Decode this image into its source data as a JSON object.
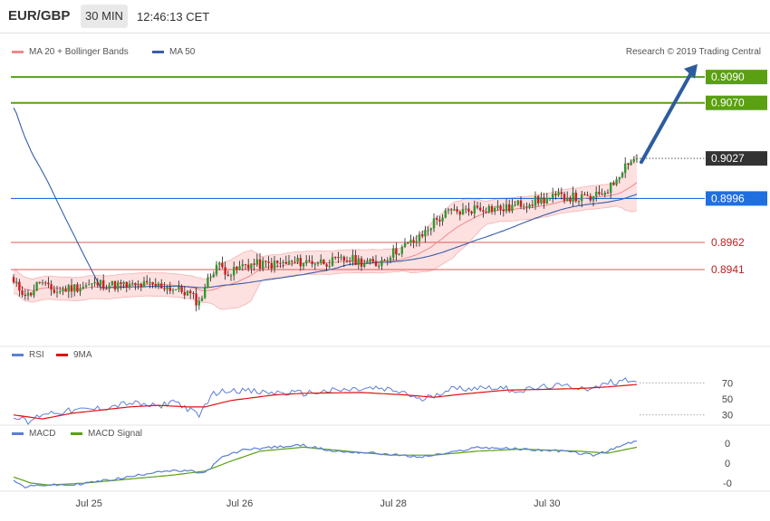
{
  "header": {
    "symbol": "EUR/GBP",
    "timeframe": "30 MIN",
    "clock": "12:46:13 CET"
  },
  "price_panel": {
    "legend": [
      {
        "label": "MA 20 + Bollinger Bands",
        "color": "#ef8a8a"
      },
      {
        "label": "MA 50",
        "color": "#3a5ea8"
      }
    ],
    "credit": "Research © 2019 Trading Central"
  },
  "rsi_panel": {
    "legend": [
      {
        "label": "RSI",
        "color": "#5b7fd6"
      },
      {
        "label": "9MA",
        "color": "#e01010"
      }
    ]
  },
  "macd_panel": {
    "legend": [
      {
        "label": "MACD",
        "color": "#5b7fd6"
      },
      {
        "label": "MACD Signal",
        "color": "#5aa012"
      }
    ]
  },
  "colors": {
    "bull": "#2e9a2e",
    "bear": "#d01c1c",
    "band": "#fde0e0",
    "target": "#5aa012",
    "current": "#333333",
    "ma50": "#1f6fe0",
    "support": "#e05a5a",
    "arrow": "#2d5c9e"
  },
  "chart_data": [
    {
      "type": "candlestick",
      "title": "EUR/GBP 30 MIN",
      "x_ticks": [
        "Jul 25",
        "Jul 26",
        "Jul 28",
        "Jul 30"
      ],
      "ylim": [
        0.8895,
        0.911
      ],
      "price_labels": [
        {
          "value": 0.909,
          "label": "0.9090",
          "kind": "target"
        },
        {
          "value": 0.907,
          "label": "0.9070",
          "kind": "target"
        },
        {
          "value": 0.9027,
          "label": "0.9027",
          "kind": "current"
        },
        {
          "value": 0.8996,
          "label": "0.8996",
          "kind": "ma50"
        },
        {
          "value": 0.8962,
          "label": "0.8962",
          "kind": "support"
        },
        {
          "value": 0.8941,
          "label": "0.8941",
          "kind": "support"
        }
      ],
      "close_keys": [
        [
          0,
          0.893
        ],
        [
          5,
          0.8921
        ],
        [
          7,
          0.8926
        ],
        [
          9,
          0.8932
        ],
        [
          12,
          0.8926
        ],
        [
          15,
          0.8924
        ],
        [
          20,
          0.8927
        ],
        [
          30,
          0.893
        ],
        [
          40,
          0.8928
        ],
        [
          45,
          0.8929
        ],
        [
          52,
          0.8928
        ],
        [
          60,
          0.8923
        ],
        [
          64,
          0.8915
        ],
        [
          66,
          0.8928
        ],
        [
          70,
          0.8945
        ],
        [
          75,
          0.8938
        ],
        [
          80,
          0.8945
        ],
        [
          90,
          0.8945
        ],
        [
          100,
          0.8947
        ],
        [
          110,
          0.8947
        ],
        [
          115,
          0.8949
        ],
        [
          118,
          0.8948
        ],
        [
          125,
          0.8945
        ],
        [
          130,
          0.8953
        ],
        [
          140,
          0.8965
        ],
        [
          145,
          0.8978
        ],
        [
          150,
          0.8985
        ],
        [
          155,
          0.8986
        ],
        [
          160,
          0.8989
        ],
        [
          170,
          0.8988
        ],
        [
          175,
          0.8992
        ],
        [
          180,
          0.8994
        ],
        [
          190,
          0.8998
        ],
        [
          195,
          0.8996
        ],
        [
          200,
          0.8996
        ],
        [
          206,
          0.9005
        ],
        [
          209,
          0.9016
        ],
        [
          212,
          0.9025
        ],
        [
          215,
          0.9027
        ]
      ],
      "forecast_arrow": {
        "from": 0.9027,
        "to": 0.91,
        "direction": "up"
      }
    },
    {
      "type": "line",
      "title": "RSI",
      "y_ticks": [
        30,
        50,
        70
      ],
      "ylim": [
        15,
        85
      ],
      "series": [
        {
          "name": "RSI",
          "keys": [
            [
              0,
              30
            ],
            [
              5,
              20
            ],
            [
              10,
              32
            ],
            [
              20,
              35
            ],
            [
              30,
              38
            ],
            [
              40,
              45
            ],
            [
              50,
              40
            ],
            [
              55,
              48
            ],
            [
              60,
              38
            ],
            [
              64,
              28
            ],
            [
              68,
              55
            ],
            [
              75,
              62
            ],
            [
              85,
              58
            ],
            [
              100,
              57
            ],
            [
              110,
              60
            ],
            [
              125,
              63
            ],
            [
              135,
              58
            ],
            [
              140,
              48
            ],
            [
              150,
              62
            ],
            [
              165,
              65
            ],
            [
              175,
              60
            ],
            [
              185,
              66
            ],
            [
              195,
              65
            ],
            [
              200,
              62
            ],
            [
              205,
              70
            ],
            [
              210,
              73
            ],
            [
              215,
              75
            ]
          ]
        },
        {
          "name": "9MA",
          "keys": [
            [
              0,
              30
            ],
            [
              10,
              25
            ],
            [
              20,
              32
            ],
            [
              30,
              36
            ],
            [
              40,
              40
            ],
            [
              50,
              42
            ],
            [
              60,
              40
            ],
            [
              66,
              40
            ],
            [
              75,
              48
            ],
            [
              90,
              55
            ],
            [
              100,
              57
            ],
            [
              120,
              58
            ],
            [
              135,
              55
            ],
            [
              145,
              52
            ],
            [
              155,
              56
            ],
            [
              170,
              61
            ],
            [
              185,
              62
            ],
            [
              195,
              63
            ],
            [
              205,
              65
            ],
            [
              215,
              68
            ]
          ]
        }
      ]
    },
    {
      "type": "line",
      "title": "MACD",
      "y_ticks": [
        "0",
        "0",
        "-0"
      ],
      "series": [
        {
          "name": "MACD",
          "keys": [
            [
              0,
              -0.0002
            ],
            [
              4,
              -0.0005
            ],
            [
              10,
              -0.0004
            ],
            [
              20,
              -0.0004
            ],
            [
              30,
              -0.0002
            ],
            [
              40,
              0.0
            ],
            [
              50,
              0.0003
            ],
            [
              60,
              0.0003
            ],
            [
              66,
              0.0002
            ],
            [
              72,
              0.001
            ],
            [
              80,
              0.0014
            ],
            [
              100,
              0.0016
            ],
            [
              110,
              0.0013
            ],
            [
              125,
              0.0012
            ],
            [
              140,
              0.001
            ],
            [
              150,
              0.0012
            ],
            [
              160,
              0.0015
            ],
            [
              175,
              0.0014
            ],
            [
              190,
              0.0013
            ],
            [
              200,
              0.0011
            ],
            [
              205,
              0.0013
            ],
            [
              212,
              0.0017
            ],
            [
              215,
              0.0018
            ]
          ]
        },
        {
          "name": "MACD Signal",
          "keys": [
            [
              0,
              0.0
            ],
            [
              6,
              -0.0003
            ],
            [
              12,
              -0.0004
            ],
            [
              25,
              -0.0003
            ],
            [
              40,
              -0.0001
            ],
            [
              55,
              0.0001
            ],
            [
              66,
              0.0003
            ],
            [
              75,
              0.0008
            ],
            [
              85,
              0.0013
            ],
            [
              100,
              0.0015
            ],
            [
              115,
              0.0013
            ],
            [
              130,
              0.0011
            ],
            [
              145,
              0.0011
            ],
            [
              160,
              0.0013
            ],
            [
              175,
              0.0014
            ],
            [
              195,
              0.0013
            ],
            [
              205,
              0.0012
            ],
            [
              215,
              0.0015
            ]
          ]
        }
      ]
    }
  ]
}
